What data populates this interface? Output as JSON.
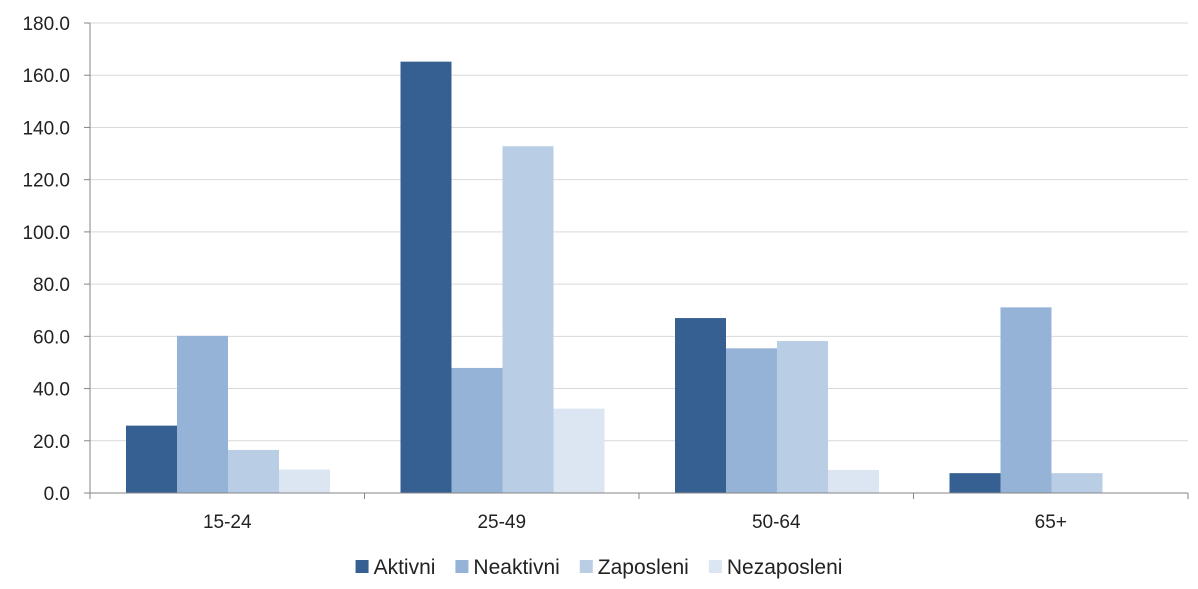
{
  "chart_data": {
    "type": "bar",
    "title": "",
    "xlabel": "",
    "ylabel": "",
    "categories": [
      "15-24",
      "25-49",
      "50-64",
      "65+"
    ],
    "series": [
      {
        "name": "Aktivni",
        "color": "#366092",
        "values": [
          25.8,
          165.2,
          67.0,
          7.6
        ]
      },
      {
        "name": "Neaktivni",
        "color": "#95b3d7",
        "values": [
          60.2,
          47.9,
          55.4,
          71.1
        ]
      },
      {
        "name": "Zaposleni",
        "color": "#b9cde5",
        "values": [
          16.5,
          132.8,
          58.2,
          7.6
        ]
      },
      {
        "name": "Nezaposleni",
        "color": "#dce6f2",
        "values": [
          9.0,
          32.3,
          8.8,
          0.0
        ]
      }
    ],
    "ylim": [
      0,
      180
    ],
    "yticks": [
      "0.0",
      "20.0",
      "40.0",
      "60.0",
      "80.0",
      "100.0",
      "120.0",
      "140.0",
      "160.0",
      "180.0"
    ],
    "grid": true,
    "legend": "bottom",
    "gridline_color": "#d9d9d9",
    "axis_color": "#868686"
  }
}
